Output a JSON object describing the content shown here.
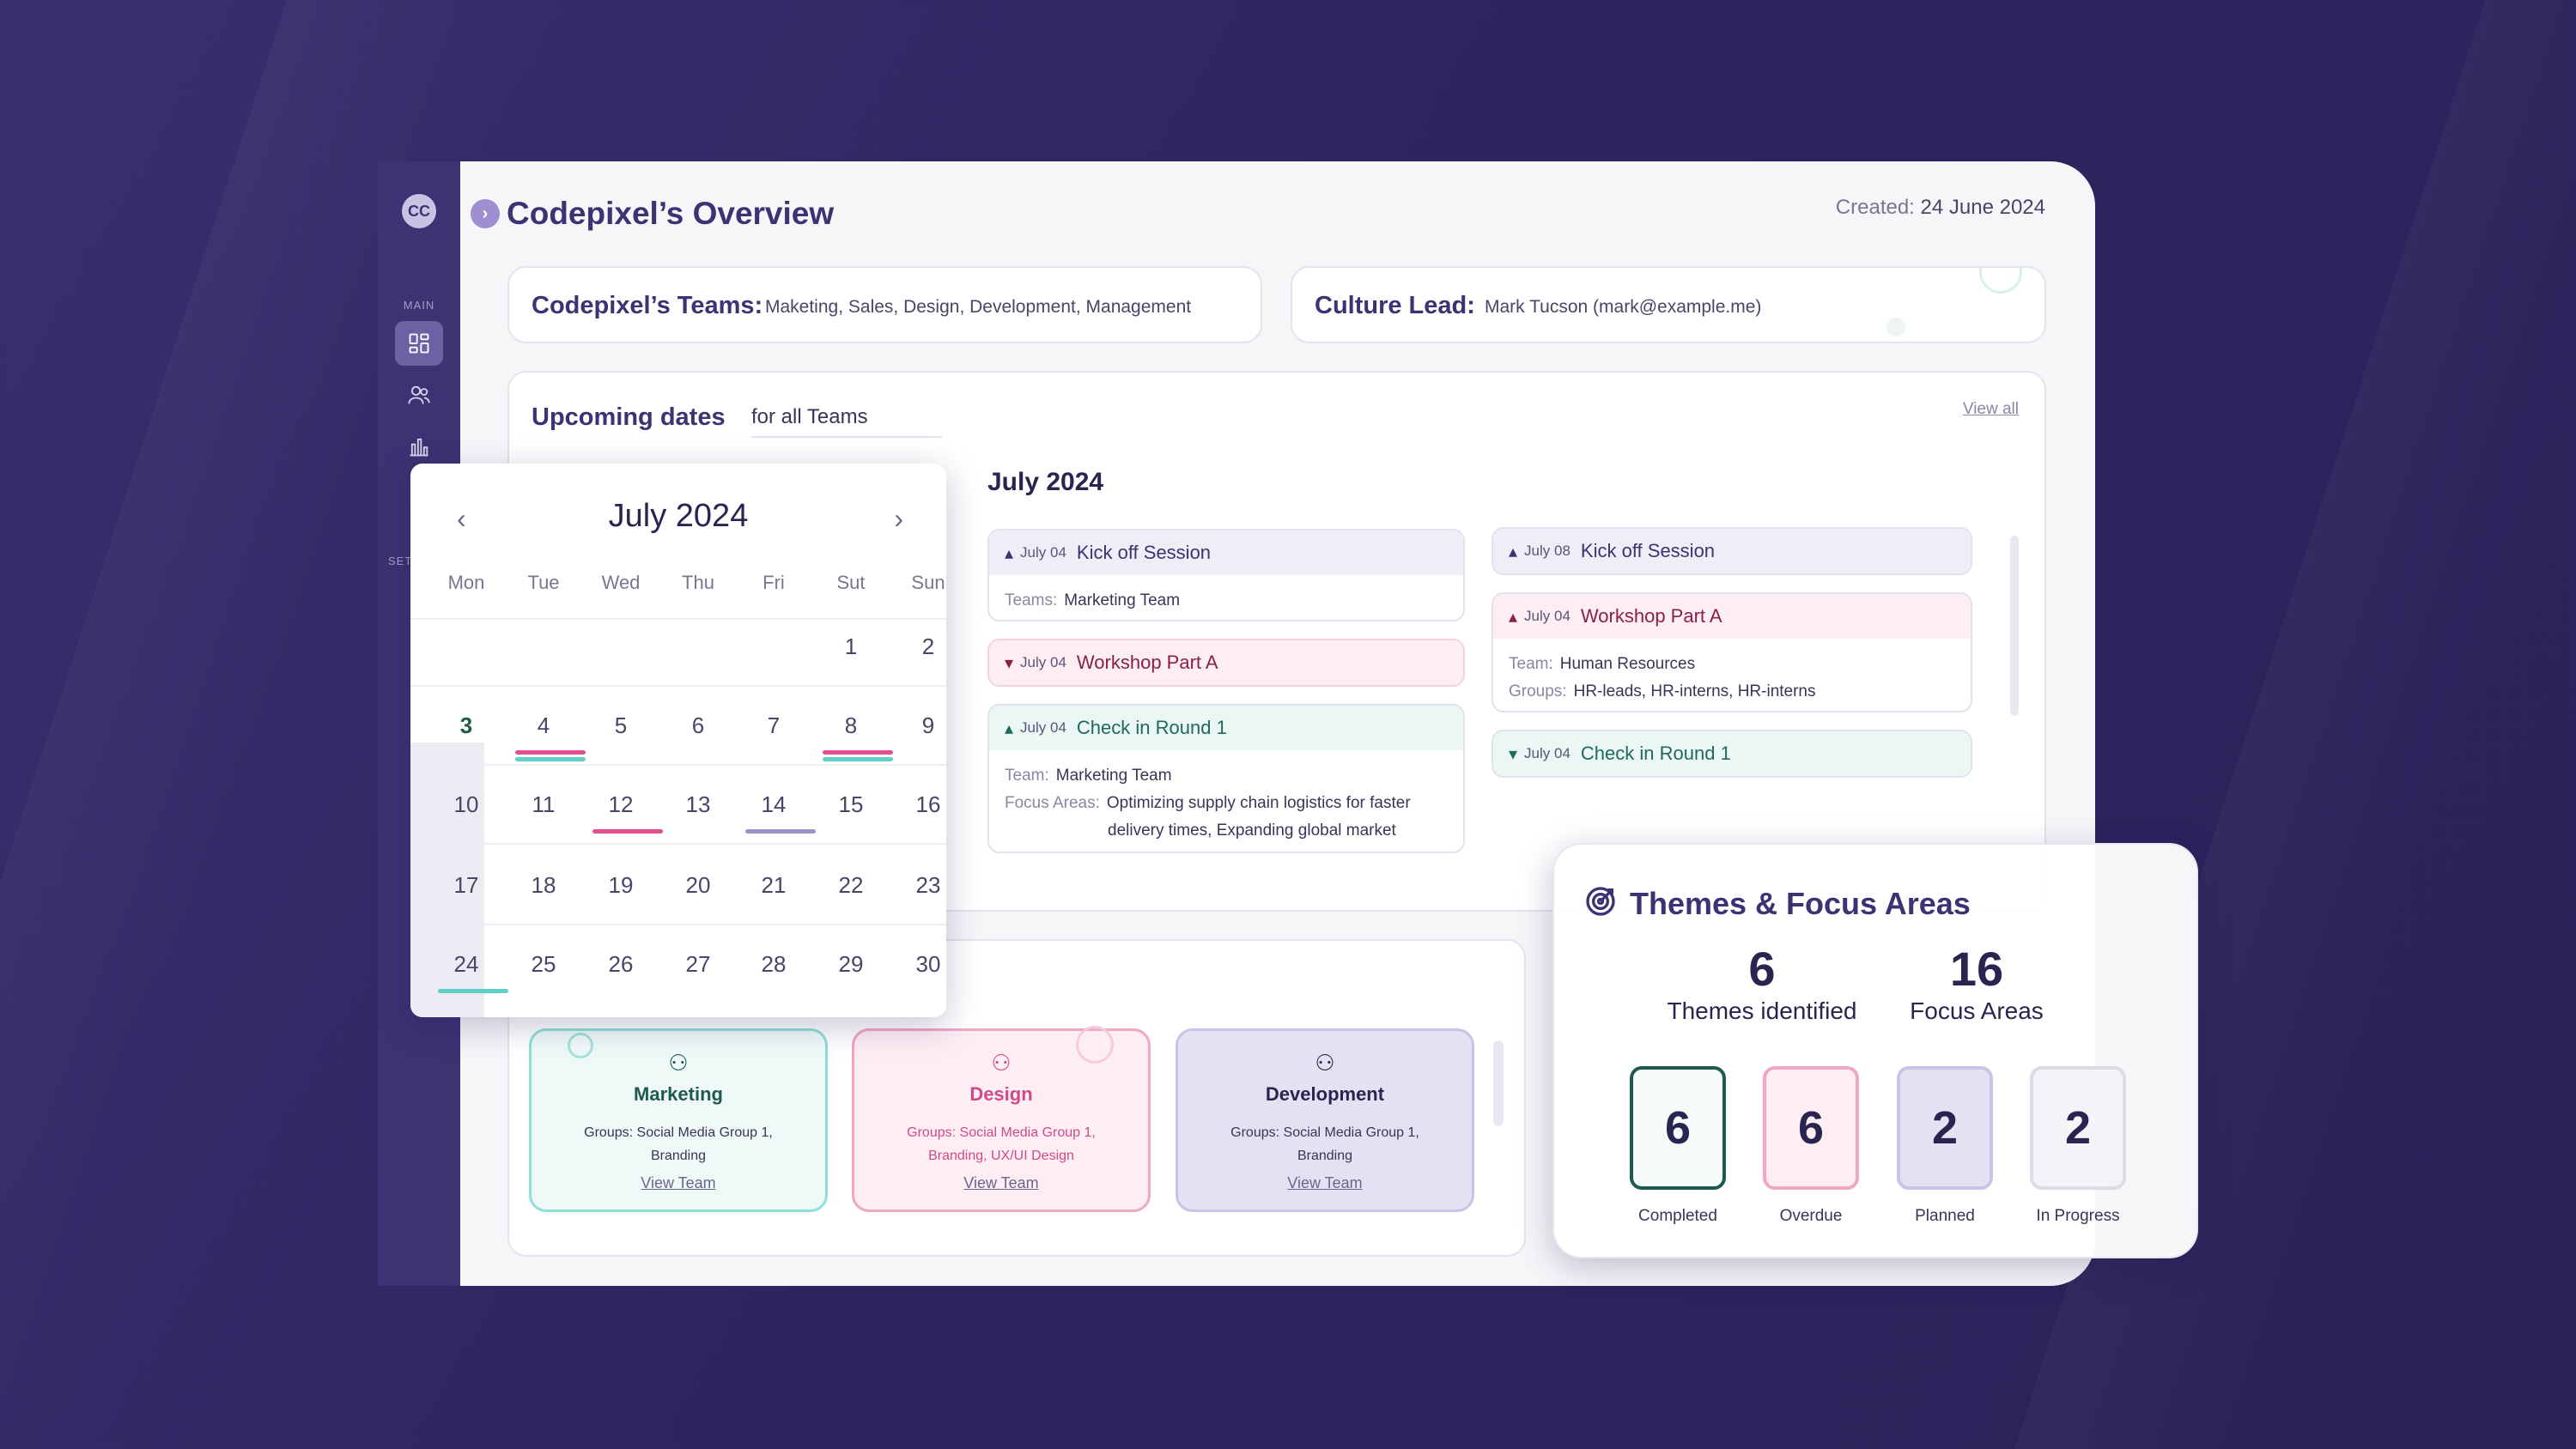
{
  "app": {
    "logo_text": "CC",
    "title": "Codepixel’s Overview",
    "created_label": "Created:",
    "created_date": "24 June 2024"
  },
  "sidebar": {
    "section_main": "MAIN",
    "section_settings": "SET",
    "items": [
      "dashboard-icon",
      "users-icon",
      "chart-icon"
    ]
  },
  "teams_card": {
    "label": "Codepixel’s Teams:",
    "value": "Maketing, Sales, Design, Development, Management"
  },
  "culture_card": {
    "label": "Culture Lead:",
    "value": "Mark Tucson (mark@example.me)"
  },
  "upcoming": {
    "title": "Upcoming dates",
    "filter": "for all Teams",
    "view_all": "View all",
    "month_title": "July 2024"
  },
  "calendar": {
    "title": "July 2024",
    "weekdays": [
      "Mon",
      "Tue",
      "Wed",
      "Thu",
      "Fri",
      "Sut",
      "Sun"
    ],
    "rows": [
      [
        "",
        "",
        "",
        "",
        "",
        "1",
        "2"
      ],
      [
        "3",
        "4",
        "5",
        "6",
        "7",
        "8",
        "9"
      ],
      [
        "10",
        "11",
        "12",
        "13",
        "14",
        "15",
        "16"
      ],
      [
        "17",
        "18",
        "19",
        "20",
        "21",
        "22",
        "23"
      ],
      [
        "24",
        "25",
        "26",
        "27",
        "28",
        "29",
        "30"
      ]
    ]
  },
  "events_left": [
    {
      "date": "July 04",
      "name": "Kick off Session",
      "color": "purple",
      "rows": [
        {
          "k": "Teams:",
          "v": "Marketing Team"
        }
      ]
    },
    {
      "date": "July 04",
      "name": "Workshop Part A",
      "color": "pink",
      "rows": []
    },
    {
      "date": "July 04",
      "name": "Check in Round 1",
      "color": "green",
      "rows": [
        {
          "k": "Team:",
          "v": "Marketing Team"
        },
        {
          "k": "Focus Areas:",
          "v": "Optimizing supply chain logistics for faster"
        },
        {
          "k": "",
          "v": "delivery times, Expanding global market"
        }
      ]
    }
  ],
  "events_right": [
    {
      "date": "July 08",
      "name": "Kick off Session",
      "color": "purple",
      "rows": []
    },
    {
      "date": "July 04",
      "name": "Workshop Part A",
      "color": "pink",
      "rows": [
        {
          "k": "Team:",
          "v": "Human Resources"
        },
        {
          "k": "Groups:",
          "v": "HR-leads, HR-interns, HR-interns"
        }
      ]
    },
    {
      "date": "July 04",
      "name": "Check in Round 1",
      "color": "green",
      "rows": []
    }
  ],
  "teams": [
    {
      "name": "Marketing",
      "groups": "Groups: Social Media Group 1, Branding",
      "link": "View Team",
      "accent": "#5fd0c6"
    },
    {
      "name": "Design",
      "groups": "Groups: Social Media Group 1, Branding, UX/UI Design",
      "link": "View Team",
      "accent": "#e98db3"
    },
    {
      "name": "Development",
      "groups": "Groups: Social Media Group 1, Branding",
      "link": "View Team",
      "accent": "#b4acd9"
    }
  ],
  "themes": {
    "title": "Themes & Focus Areas",
    "stats": [
      {
        "value": "6",
        "label": "Themes identified"
      },
      {
        "value": "16",
        "label": "Focus Areas"
      }
    ],
    "status": [
      {
        "value": "6",
        "label": "Completed",
        "color": "#1f5a50"
      },
      {
        "value": "6",
        "label": "Overdue",
        "color": "#e98db3"
      },
      {
        "value": "2",
        "label": "Planned",
        "color": "#b4acd9"
      },
      {
        "value": "2",
        "label": "In Progress",
        "color": "#d8d7e3"
      }
    ]
  }
}
